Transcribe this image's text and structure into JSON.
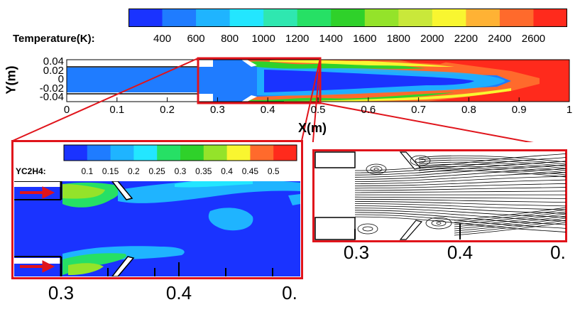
{
  "temperature_colorbar": {
    "title": "Temperature(K):",
    "ticks": [
      "400",
      "600",
      "800",
      "1000",
      "1200",
      "1400",
      "1600",
      "1800",
      "2000",
      "2200",
      "2400",
      "2600"
    ],
    "colors": [
      "#1a33ff",
      "#1f7cff",
      "#1fb4ff",
      "#23e6ff",
      "#2fe7b0",
      "#26e065",
      "#2fd12a",
      "#94e32a",
      "#c9e83a",
      "#f9f630",
      "#ffb234",
      "#ff6a2c",
      "#ff2a1c"
    ]
  },
  "main_plot": {
    "ylabel": "Y(m)",
    "xlabel": "X(m)",
    "yticks": [
      "0.04",
      "0.02",
      "0",
      "-0.02",
      "-0.04"
    ],
    "xticks": [
      "0",
      "0.1",
      "0.2",
      "0.3",
      "0.4",
      "0.5",
      "0.6",
      "0.7",
      "0.8",
      "0.9",
      "1"
    ]
  },
  "inset_left": {
    "colorbar_title": "YC2H4:",
    "colorbar_ticks": [
      "0.1",
      "0.15",
      "0.2",
      "0.25",
      "0.3",
      "0.35",
      "0.4",
      "0.45",
      "0.5"
    ],
    "colorbar_colors": [
      "#1a33ff",
      "#1f7cff",
      "#1fb4ff",
      "#23e6ff",
      "#26e065",
      "#2fd12a",
      "#94e32a",
      "#f9f630",
      "#ff6a2c",
      "#ff2a1c"
    ],
    "xticks": [
      "0.3",
      "0.4",
      "0."
    ]
  },
  "inset_right": {
    "xticks": [
      "0.3",
      "0.4",
      "0."
    ]
  },
  "colors": {
    "frame_red": "#e0141b"
  }
}
